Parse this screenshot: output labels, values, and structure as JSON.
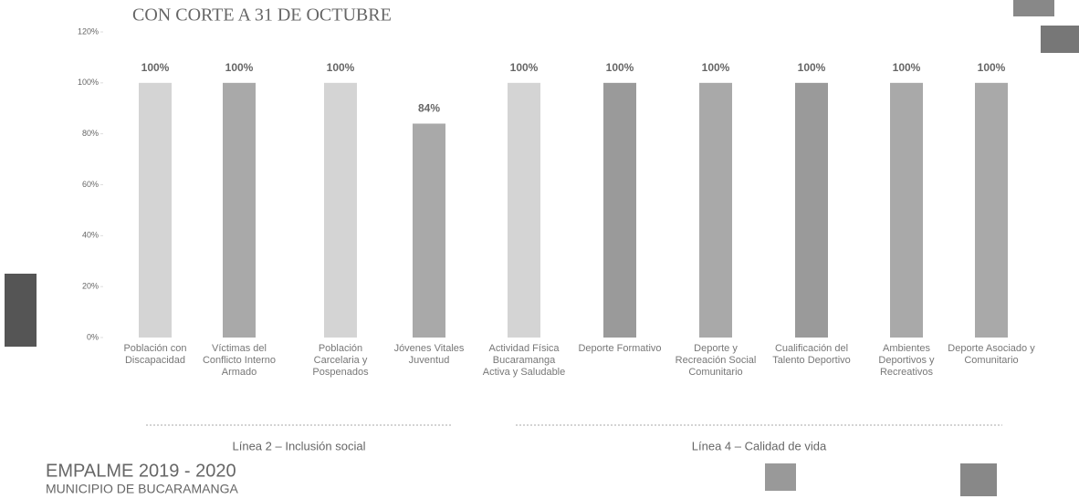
{
  "chart_data": {
    "type": "bar",
    "title": "CON CORTE A 31 DE OCTUBRE",
    "categories": [
      "Población con Discapacidad",
      "Víctimas del Conflicto Interno Armado",
      "Población Carcelaria y Pospenados",
      "Jóvenes Vitales Juventud",
      "Actividad Física Bucaramanga Activa y Saludable",
      "Deporte Formativo",
      "Deporte y Recreación Social Comunitario",
      "Cualificación del Talento Deportivo",
      "Ambientes Deportivos y Recreativos",
      "Deporte Asociado y Comunitario"
    ],
    "values": [
      100,
      100,
      100,
      84,
      100,
      100,
      100,
      100,
      100,
      100
    ],
    "value_labels": [
      "100%",
      "100%",
      "100%",
      "84%",
      "100%",
      "100%",
      "100%",
      "100%",
      "100%",
      "100%"
    ],
    "colors": [
      "#d4d4d4",
      "#a9a9a9",
      "#d4d4d4",
      "#a9a9a9",
      "#d4d4d4",
      "#9a9a9a",
      "#a9a9a9",
      "#9a9a9a",
      "#a9a9a9",
      "#a9a9a9"
    ],
    "ylim": [
      0,
      120
    ],
    "yticks": [
      {
        "value": 0,
        "label": "0%"
      },
      {
        "value": 20,
        "label": "20%"
      },
      {
        "value": 40,
        "label": "40%"
      },
      {
        "value": 60,
        "label": "60%"
      },
      {
        "value": 80,
        "label": "80%"
      },
      {
        "value": 100,
        "label": "100%"
      },
      {
        "value": 120,
        "label": "120%"
      }
    ],
    "grid": false,
    "groups": [
      {
        "label": "Línea 2 – Inclusión social"
      },
      {
        "label": "Línea 4 – Calidad de vida"
      }
    ],
    "footer_title": "EMPALME 2019 - 2020",
    "footer_subtitle": "MUNICIPIO DE BUCARAMANGA"
  }
}
